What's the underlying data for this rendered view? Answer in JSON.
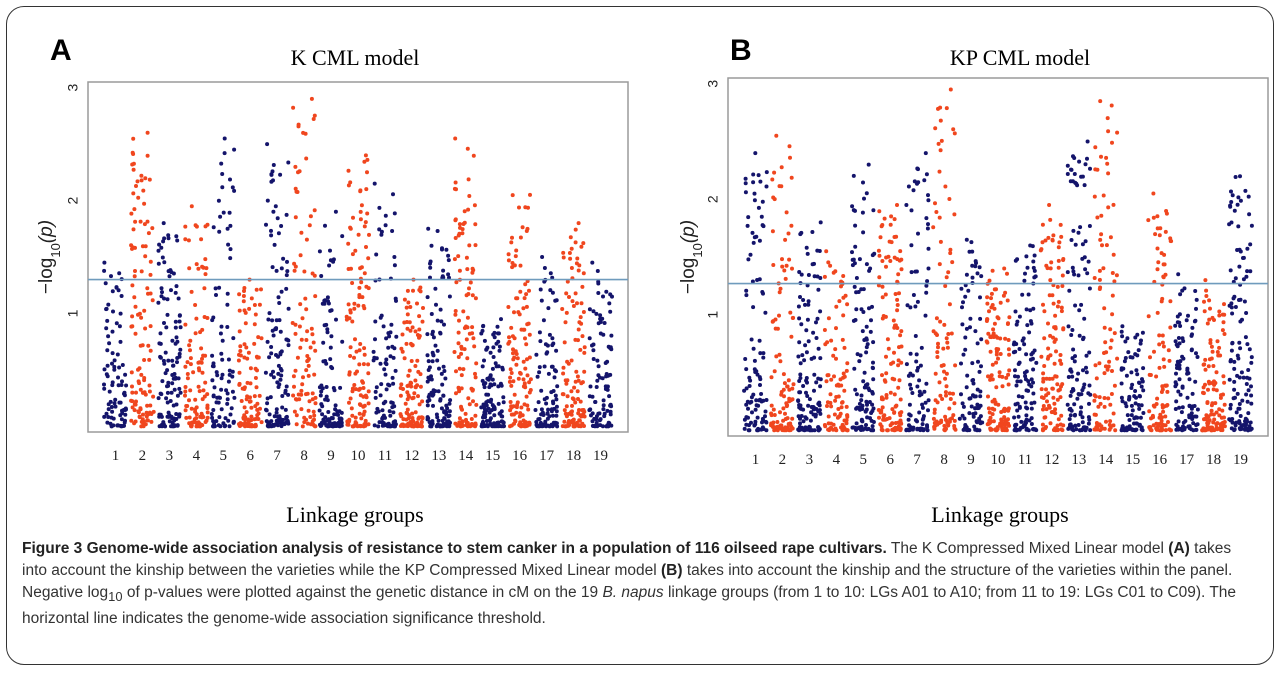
{
  "figure": {
    "caption_title": "Figure 3 Genome-wide association analysis of resistance to stem canker in a population of 116 oilseed rape cultivars.",
    "caption_seg1": " The K Compressed Mixed Linear model ",
    "caption_ref_a": "(A)",
    "caption_seg2": " takes into account the kinship between the varieties while the KP Compressed Mixed Linear model ",
    "caption_ref_b": "(B)",
    "caption_seg3": " takes into account the kinship and the structure of the varieties within the panel. Negative log",
    "caption_sub": "10",
    "caption_seg4": " of p-values were plotted against the genetic distance in cM on the 19 ",
    "caption_species": "B. napus",
    "caption_seg5": " linkage groups (from 1 to 10: LGs A01 to A10; from 11 to 19: LGs C01 to C09). The horizontal line indicates the genome-wide association significance threshold."
  },
  "colors": {
    "odd_group": "#14146b",
    "even_group": "#f0461e",
    "threshold": "#6f9bbd",
    "frame": "#9a9a9a"
  },
  "chart_data": [
    {
      "type": "scatter",
      "panel": "A",
      "title": "K CML model",
      "xlabel": "Linkage groups",
      "ylabel_prefix": "−log",
      "ylabel_sub": "10",
      "ylabel_var": "(p)",
      "categories": [
        "1",
        "2",
        "3",
        "4",
        "5",
        "6",
        "7",
        "8",
        "9",
        "10",
        "11",
        "12",
        "13",
        "14",
        "15",
        "16",
        "17",
        "18",
        "19"
      ],
      "yticks": [
        "1",
        "2",
        "3"
      ],
      "ylim": [
        -0.05,
        3.05
      ],
      "threshold": 1.3,
      "group_max": [
        1.45,
        2.6,
        1.8,
        1.95,
        2.55,
        1.3,
        2.5,
        2.9,
        1.9,
        2.4,
        2.15,
        1.3,
        1.75,
        2.55,
        0.95,
        2.05,
        1.5,
        1.8,
        1.45
      ],
      "grid": false,
      "legend": "none"
    },
    {
      "type": "scatter",
      "panel": "B",
      "title": "KP CML model",
      "xlabel": "Linkage groups",
      "ylabel_prefix": "−log",
      "ylabel_sub": "10",
      "ylabel_var": "(p)",
      "categories": [
        "1",
        "2",
        "3",
        "4",
        "5",
        "6",
        "7",
        "8",
        "9",
        "10",
        "11",
        "12",
        "13",
        "14",
        "15",
        "16",
        "17",
        "18",
        "19"
      ],
      "yticks": [
        "1",
        "2",
        "3"
      ],
      "ylim": [
        -0.05,
        3.05
      ],
      "threshold": 1.27,
      "group_max": [
        2.4,
        2.55,
        1.8,
        1.55,
        2.3,
        1.95,
        2.4,
        2.95,
        1.65,
        1.4,
        1.6,
        1.95,
        2.5,
        2.85,
        0.9,
        2.05,
        1.35,
        1.3,
        2.2
      ],
      "grid": false,
      "legend": "none"
    }
  ]
}
